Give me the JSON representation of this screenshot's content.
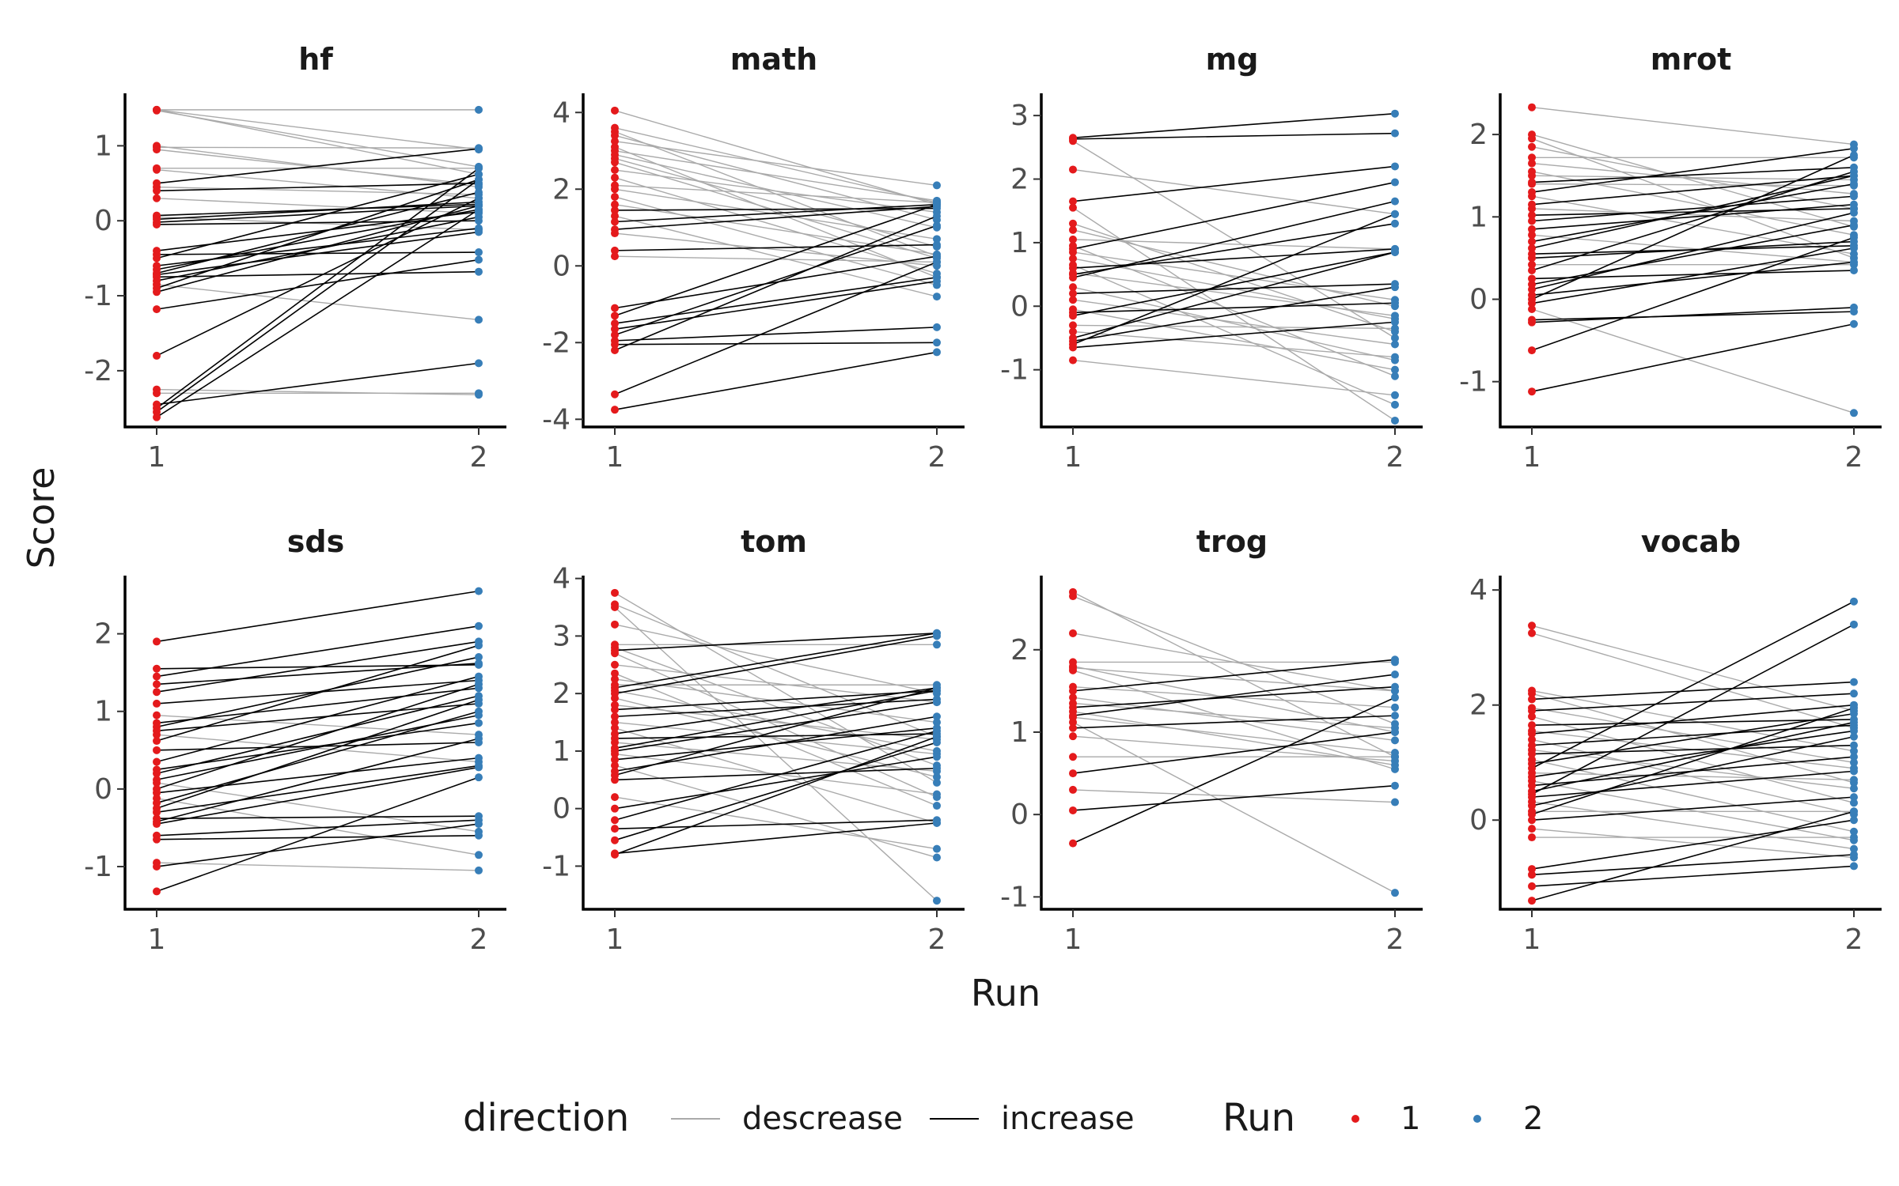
{
  "chart_data": {
    "type": "line",
    "xlabel": "Run",
    "ylabel": "Score",
    "x": [
      "1",
      "2"
    ],
    "legend": {
      "position": "bottom",
      "direction_title": "direction",
      "direction_entries": [
        {
          "label": "descrease",
          "color": "#aaaaaa"
        },
        {
          "label": "increase",
          "color": "#000000"
        }
      ],
      "run_title": "Run",
      "run_entries": [
        {
          "label": "1",
          "color": "#e41a1c"
        },
        {
          "label": "2",
          "color": "#377eb8"
        }
      ]
    },
    "facets": [
      {
        "title": "hf",
        "ylim": [
          -2.75,
          1.7
        ],
        "yticks": [
          -2,
          -1,
          0,
          1
        ],
        "pairs": [
          [
            1.48,
            1.48
          ],
          [
            1.48,
            0.95
          ],
          [
            1.48,
            0.62
          ],
          [
            1.47,
            0.72
          ],
          [
            1.0,
            0.45
          ],
          [
            0.98,
            0.97
          ],
          [
            0.95,
            0.48
          ],
          [
            0.7,
            0.7
          ],
          [
            0.68,
            0.3
          ],
          [
            0.5,
            0.96
          ],
          [
            0.45,
            0.35
          ],
          [
            0.4,
            0.5
          ],
          [
            0.3,
            0.1
          ],
          [
            0.07,
            0.22
          ],
          [
            0.05,
            -0.12
          ],
          [
            0.02,
            0.25
          ],
          [
            -0.02,
            0.2
          ],
          [
            -0.05,
            0.0
          ],
          [
            -0.4,
            0.12
          ],
          [
            -0.45,
            -0.42
          ],
          [
            -0.5,
            0.62
          ],
          [
            -0.6,
            -0.1
          ],
          [
            -0.65,
            0.15
          ],
          [
            -0.7,
            0.38
          ],
          [
            -0.72,
            -0.15
          ],
          [
            -0.75,
            -0.68
          ],
          [
            -0.8,
            0.05
          ],
          [
            -0.85,
            -1.32
          ],
          [
            -0.9,
            0.55
          ],
          [
            -0.95,
            0.2
          ],
          [
            -1.18,
            -0.52
          ],
          [
            -1.8,
            0.3
          ],
          [
            -2.25,
            -2.32
          ],
          [
            -2.3,
            -2.3
          ],
          [
            -2.45,
            -1.9
          ],
          [
            -2.5,
            0.7
          ],
          [
            -2.55,
            0.55
          ],
          [
            -2.62,
            0.15
          ]
        ]
      },
      {
        "title": "math",
        "ylim": [
          -4.2,
          4.5
        ],
        "yticks": [
          -4,
          -2,
          0,
          2,
          4
        ],
        "pairs": [
          [
            4.05,
            1.6
          ],
          [
            3.6,
            1.65
          ],
          [
            3.5,
            0.25
          ],
          [
            3.4,
            1.2
          ],
          [
            3.25,
            2.1
          ],
          [
            3.1,
            -0.3
          ],
          [
            3.0,
            1.7
          ],
          [
            2.9,
            1.0
          ],
          [
            2.8,
            0.5
          ],
          [
            2.7,
            0.2
          ],
          [
            2.5,
            1.4
          ],
          [
            2.3,
            -0.2
          ],
          [
            2.1,
            1.65
          ],
          [
            2.0,
            0.7
          ],
          [
            1.8,
            -0.5
          ],
          [
            1.6,
            0.3
          ],
          [
            1.45,
            1.5
          ],
          [
            1.3,
            -0.8
          ],
          [
            1.15,
            1.6
          ],
          [
            0.95,
            1.55
          ],
          [
            0.85,
            0.0
          ],
          [
            0.4,
            0.55
          ],
          [
            0.25,
            0.1
          ],
          [
            -1.1,
            0.25
          ],
          [
            -1.3,
            1.6
          ],
          [
            -1.5,
            -0.3
          ],
          [
            -1.65,
            -0.4
          ],
          [
            -1.8,
            1.05
          ],
          [
            -1.95,
            -1.6
          ],
          [
            -2.05,
            -2.0
          ],
          [
            -2.2,
            1.3
          ],
          [
            -3.35,
            0.1
          ],
          [
            -3.75,
            -2.25
          ]
        ]
      },
      {
        "title": "mg",
        "ylim": [
          -1.9,
          3.35
        ],
        "yticks": [
          -1,
          0,
          1,
          2,
          3
        ],
        "pairs": [
          [
            2.65,
            3.03
          ],
          [
            2.63,
            2.72
          ],
          [
            2.6,
            -0.5
          ],
          [
            2.15,
            1.45
          ],
          [
            1.65,
            2.2
          ],
          [
            1.55,
            -1.8
          ],
          [
            1.3,
            -0.4
          ],
          [
            1.2,
            0.0
          ],
          [
            1.05,
            0.9
          ],
          [
            0.95,
            -1.1
          ],
          [
            0.9,
            1.95
          ],
          [
            0.85,
            0.1
          ],
          [
            0.75,
            -0.2
          ],
          [
            0.65,
            -1.55
          ],
          [
            0.6,
            0.9
          ],
          [
            0.52,
            -0.15
          ],
          [
            0.5,
            1.3
          ],
          [
            0.45,
            1.65
          ],
          [
            0.3,
            -0.85
          ],
          [
            0.2,
            0.35
          ],
          [
            0.1,
            -0.6
          ],
          [
            -0.05,
            -1.0
          ],
          [
            -0.1,
            0.05
          ],
          [
            -0.15,
            0.85
          ],
          [
            -0.3,
            -0.35
          ],
          [
            -0.4,
            -0.8
          ],
          [
            -0.5,
            0.85
          ],
          [
            -0.55,
            0.3
          ],
          [
            -0.6,
            1.45
          ],
          [
            -0.65,
            -0.25
          ],
          [
            -0.85,
            -1.4
          ]
        ]
      },
      {
        "title": "mrot",
        "ylim": [
          -1.55,
          2.5
        ],
        "yticks": [
          -1,
          0,
          1,
          2
        ],
        "pairs": [
          [
            2.33,
            1.88
          ],
          [
            2.0,
            0.88
          ],
          [
            1.95,
            0.5
          ],
          [
            1.85,
            1.1
          ],
          [
            1.72,
            1.72
          ],
          [
            1.65,
            1.28
          ],
          [
            1.55,
            0.78
          ],
          [
            1.5,
            1.45
          ],
          [
            1.42,
            1.6
          ],
          [
            1.4,
            1.38
          ],
          [
            1.3,
            1.83
          ],
          [
            1.25,
            0.55
          ],
          [
            1.15,
            1.5
          ],
          [
            1.1,
            0.95
          ],
          [
            1.02,
            1.1
          ],
          [
            0.95,
            1.25
          ],
          [
            0.85,
            1.15
          ],
          [
            0.78,
            0.45
          ],
          [
            0.7,
            1.4
          ],
          [
            0.62,
            1.5
          ],
          [
            0.55,
            0.65
          ],
          [
            0.5,
            0.7
          ],
          [
            0.42,
            0.42
          ],
          [
            0.35,
            1.55
          ],
          [
            0.25,
            0.35
          ],
          [
            0.18,
            0.9
          ],
          [
            0.12,
            1.05
          ],
          [
            0.05,
            0.45
          ],
          [
            0.0,
            1.75
          ],
          [
            -0.05,
            0.62
          ],
          [
            -0.12,
            -1.38
          ],
          [
            -0.25,
            -0.15
          ],
          [
            -0.28,
            -0.1
          ],
          [
            -0.62,
            0.75
          ],
          [
            -1.12,
            -0.3
          ]
        ]
      },
      {
        "title": "sds",
        "ylim": [
          -1.55,
          2.75
        ],
        "yticks": [
          -1,
          0,
          1,
          2
        ],
        "pairs": [
          [
            1.9,
            2.55
          ],
          [
            1.55,
            1.6
          ],
          [
            1.45,
            2.1
          ],
          [
            1.35,
            1.62
          ],
          [
            1.25,
            1.9
          ],
          [
            1.1,
            1.4
          ],
          [
            0.95,
            0.7
          ],
          [
            0.85,
            1.3
          ],
          [
            0.8,
            1.7
          ],
          [
            0.75,
            1.1
          ],
          [
            0.7,
            0.35
          ],
          [
            0.62,
            1.85
          ],
          [
            0.5,
            0.6
          ],
          [
            0.35,
            1.45
          ],
          [
            0.25,
            0.85
          ],
          [
            0.2,
            1.2
          ],
          [
            0.12,
            0.95
          ],
          [
            0.08,
            -0.55
          ],
          [
            0.0,
            1.35
          ],
          [
            -0.05,
            0.4
          ],
          [
            -0.12,
            -0.85
          ],
          [
            -0.18,
            1.0
          ],
          [
            -0.25,
            1.15
          ],
          [
            -0.3,
            0.3
          ],
          [
            -0.38,
            -0.35
          ],
          [
            -0.42,
            0.65
          ],
          [
            -0.45,
            0.28
          ],
          [
            -0.6,
            -0.4
          ],
          [
            -0.65,
            -0.6
          ],
          [
            -0.95,
            -1.05
          ],
          [
            -1.0,
            -0.45
          ],
          [
            -1.32,
            0.15
          ]
        ]
      },
      {
        "title": "tom",
        "ylim": [
          -1.75,
          4.05
        ],
        "yticks": [
          -1,
          0,
          1,
          2,
          3,
          4
        ],
        "pairs": [
          [
            3.75,
            0.45
          ],
          [
            3.55,
            1.25
          ],
          [
            3.5,
            -1.6
          ],
          [
            3.2,
            2.0
          ],
          [
            2.85,
            2.85
          ],
          [
            2.8,
            0.75
          ],
          [
            2.75,
            3.05
          ],
          [
            2.7,
            0.2
          ],
          [
            2.5,
            1.85
          ],
          [
            2.35,
            0.05
          ],
          [
            2.25,
            1.5
          ],
          [
            2.15,
            2.15
          ],
          [
            2.1,
            3.05
          ],
          [
            2.05,
            1.0
          ],
          [
            2.0,
            3.0
          ],
          [
            1.92,
            0.55
          ],
          [
            1.8,
            1.2
          ],
          [
            1.72,
            2.05
          ],
          [
            1.6,
            1.9
          ],
          [
            1.5,
            0.95
          ],
          [
            1.4,
            -0.25
          ],
          [
            1.3,
            2.1
          ],
          [
            1.22,
            1.3
          ],
          [
            1.15,
            0.65
          ],
          [
            1.05,
            2.05
          ],
          [
            1.0,
            1.85
          ],
          [
            0.95,
            0.25
          ],
          [
            0.85,
            1.4
          ],
          [
            0.75,
            -0.85
          ],
          [
            0.65,
            1.6
          ],
          [
            0.58,
            2.1
          ],
          [
            0.5,
            0.7
          ],
          [
            0.2,
            -0.7
          ],
          [
            0.0,
            0.9
          ],
          [
            -0.2,
            1.35
          ],
          [
            -0.35,
            -0.2
          ],
          [
            -0.55,
            1.15
          ],
          [
            -0.78,
            -0.25
          ],
          [
            -0.8,
            1.25
          ]
        ]
      },
      {
        "title": "trog",
        "ylim": [
          -1.15,
          2.9
        ],
        "yticks": [
          -1,
          0,
          1,
          2
        ],
        "pairs": [
          [
            2.7,
            0.7
          ],
          [
            2.65,
            1.1
          ],
          [
            2.2,
            1.5
          ],
          [
            1.85,
            1.85
          ],
          [
            1.8,
            1.0
          ],
          [
            1.78,
            1.5
          ],
          [
            1.75,
            0.55
          ],
          [
            1.55,
            1.3
          ],
          [
            1.5,
            1.88
          ],
          [
            1.42,
            0.9
          ],
          [
            1.35,
            1.05
          ],
          [
            1.3,
            1.55
          ],
          [
            1.25,
            0.6
          ],
          [
            1.2,
            1.7
          ],
          [
            1.18,
            0.75
          ],
          [
            1.12,
            -0.95
          ],
          [
            1.05,
            1.2
          ],
          [
            0.95,
            0.65
          ],
          [
            0.7,
            0.7
          ],
          [
            0.5,
            1.0
          ],
          [
            0.3,
            0.15
          ],
          [
            0.05,
            0.35
          ],
          [
            -0.35,
            1.42
          ]
        ]
      },
      {
        "title": "vocab",
        "ylim": [
          -1.55,
          4.25
        ],
        "yticks": [
          0,
          2,
          4
        ],
        "pairs": [
          [
            3.38,
            1.9
          ],
          [
            3.25,
            1.6
          ],
          [
            2.25,
            1.2
          ],
          [
            2.2,
            0.65
          ],
          [
            2.1,
            2.4
          ],
          [
            1.95,
            1.0
          ],
          [
            1.9,
            2.2
          ],
          [
            1.8,
            0.3
          ],
          [
            1.65,
            1.75
          ],
          [
            1.55,
            0.9
          ],
          [
            1.5,
            2.0
          ],
          [
            1.4,
            0.1
          ],
          [
            1.3,
            1.65
          ],
          [
            1.22,
            0.55
          ],
          [
            1.15,
            1.3
          ],
          [
            1.05,
            -0.2
          ],
          [
            0.98,
            1.85
          ],
          [
            0.9,
            3.8
          ],
          [
            0.82,
            0.7
          ],
          [
            0.75,
            1.55
          ],
          [
            0.68,
            -0.35
          ],
          [
            0.6,
            1.1
          ],
          [
            0.5,
            1.7
          ],
          [
            0.45,
            3.4
          ],
          [
            0.4,
            0.85
          ],
          [
            0.32,
            -0.5
          ],
          [
            0.25,
            1.45
          ],
          [
            0.15,
            0.15
          ],
          [
            0.1,
            1.95
          ],
          [
            0.0,
            0.4
          ],
          [
            -0.15,
            -0.65
          ],
          [
            -0.3,
            -0.3
          ],
          [
            -0.85,
            0.0
          ],
          [
            -0.95,
            -0.6
          ],
          [
            -1.15,
            -0.8
          ],
          [
            -1.4,
            0.15
          ]
        ]
      }
    ]
  }
}
